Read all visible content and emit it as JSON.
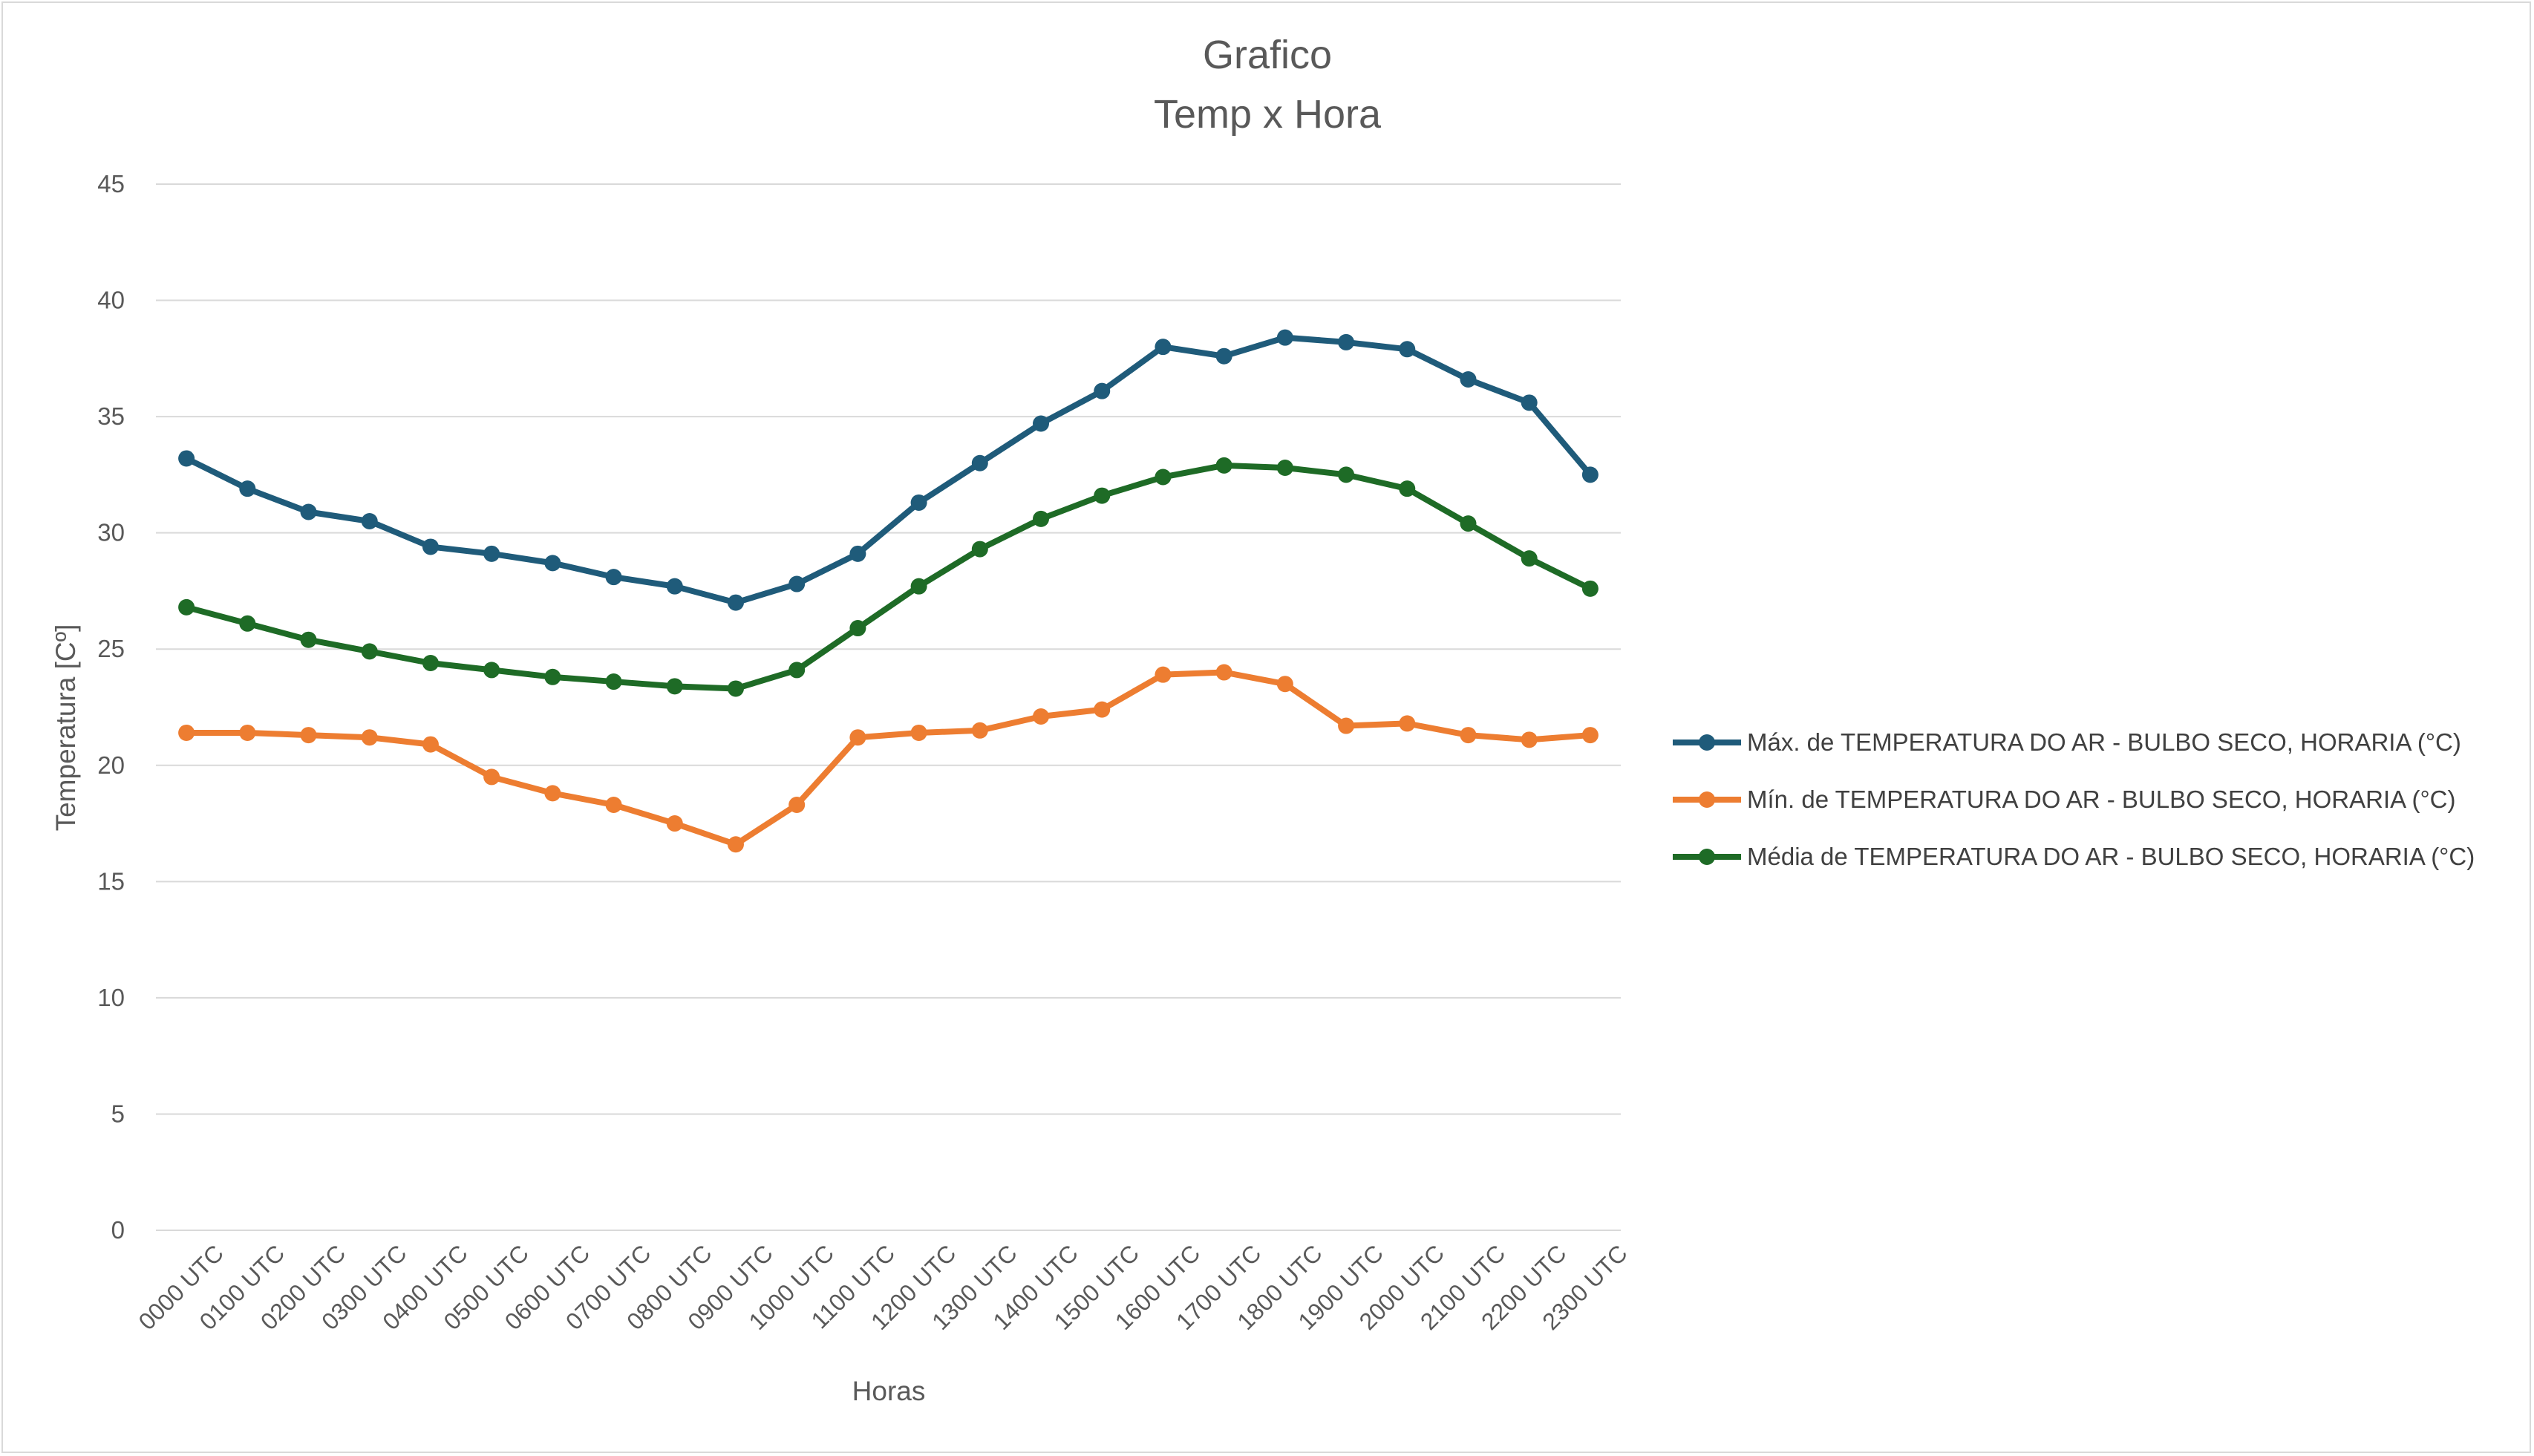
{
  "chart_data": {
    "type": "line",
    "title": "Grafico",
    "subtitle": "Temp x Hora",
    "xlabel": "Horas",
    "ylabel": "Temperatura [Cº]",
    "ylim": [
      0,
      45
    ],
    "yticks": [
      "0",
      "5",
      "10",
      "15",
      "20",
      "25",
      "30",
      "35",
      "40",
      "45"
    ],
    "grid": "horizontal",
    "legend_position": "right",
    "categories": [
      "0000 UTC",
      "0100 UTC",
      "0200 UTC",
      "0300 UTC",
      "0400 UTC",
      "0500 UTC",
      "0600 UTC",
      "0700 UTC",
      "0800 UTC",
      "0900 UTC",
      "1000 UTC",
      "1100 UTC",
      "1200 UTC",
      "1300 UTC",
      "1400 UTC",
      "1500 UTC",
      "1600 UTC",
      "1700 UTC",
      "1800 UTC",
      "1900 UTC",
      "2000 UTC",
      "2100 UTC",
      "2200 UTC",
      "2300 UTC"
    ],
    "series": [
      {
        "name": "Máx. de TEMPERATURA DO AR - BULBO SECO, HORARIA (°C)",
        "color": "#1f5b7a",
        "values": [
          33.2,
          31.9,
          30.9,
          30.5,
          29.4,
          29.1,
          28.7,
          28.1,
          27.7,
          27.0,
          27.8,
          29.1,
          31.3,
          33.0,
          34.7,
          36.1,
          38.0,
          37.6,
          38.4,
          38.2,
          37.9,
          36.6,
          35.6,
          32.5
        ]
      },
      {
        "name": "Mín. de TEMPERATURA DO AR - BULBO SECO, HORARIA (°C)",
        "color": "#ed7d31",
        "values": [
          21.4,
          21.4,
          21.3,
          21.2,
          20.9,
          19.5,
          18.8,
          18.3,
          17.5,
          16.6,
          18.3,
          21.2,
          21.4,
          21.5,
          22.1,
          22.4,
          23.9,
          24.0,
          23.5,
          21.7,
          21.8,
          21.3,
          21.1,
          21.3
        ]
      },
      {
        "name": "Média de TEMPERATURA DO AR - BULBO SECO, HORARIA (°C)",
        "color": "#1e6b26",
        "values": [
          26.8,
          26.1,
          25.4,
          24.9,
          24.4,
          24.1,
          23.8,
          23.6,
          23.4,
          23.3,
          24.1,
          25.9,
          27.7,
          29.3,
          30.6,
          31.6,
          32.4,
          32.9,
          32.8,
          32.5,
          31.9,
          30.4,
          28.9,
          27.6
        ]
      }
    ]
  }
}
